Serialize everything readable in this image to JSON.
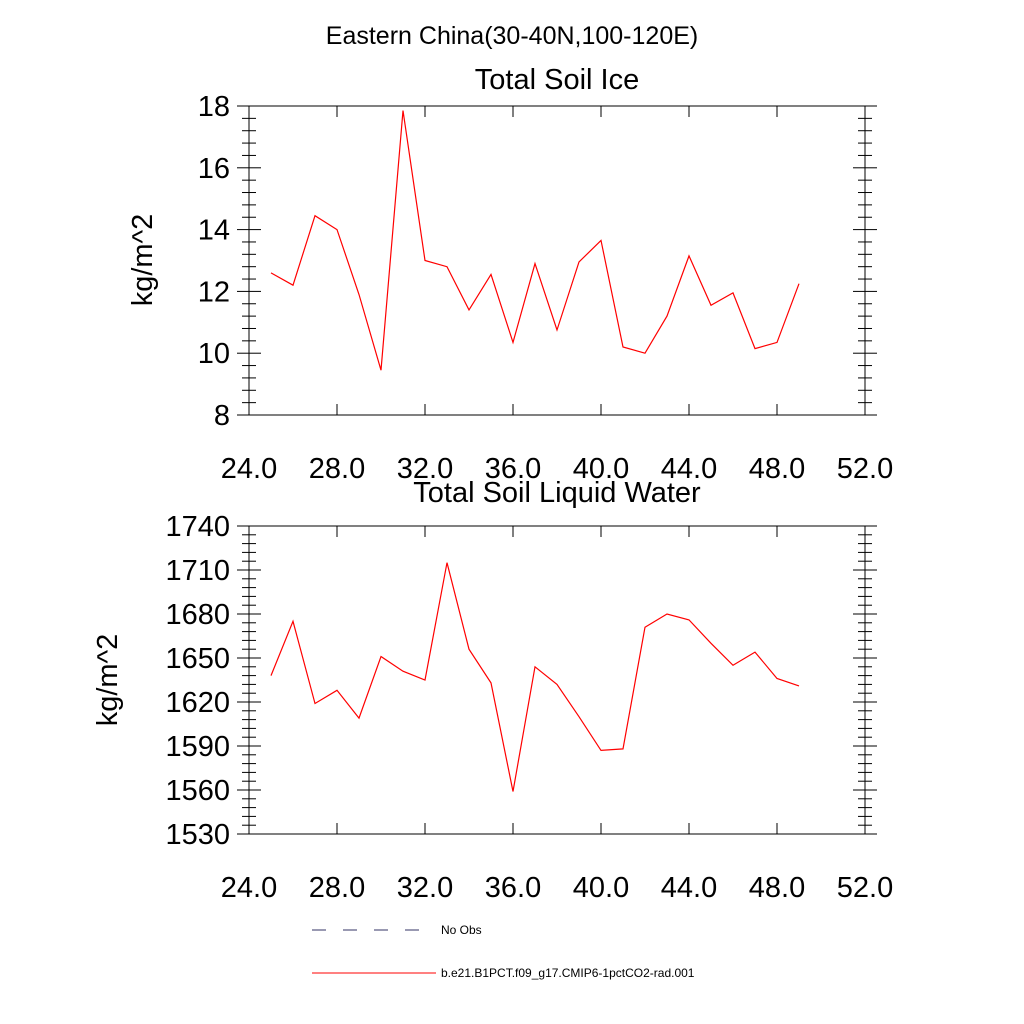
{
  "figure": {
    "title": "Eastern China(30-40N,100-120E)"
  },
  "chart_data": [
    {
      "type": "line",
      "title": "Total Soil Ice",
      "ylabel": "kg/m^2",
      "xlabel": "",
      "xlim": [
        24,
        52
      ],
      "ylim": [
        8,
        18
      ],
      "xticks": [
        "24.0",
        "28.0",
        "32.0",
        "36.0",
        "40.0",
        "44.0",
        "48.0",
        "52.0"
      ],
      "yticks": [
        "8",
        "10",
        "12",
        "14",
        "16",
        "18"
      ],
      "x": [
        25,
        26,
        27,
        28,
        29,
        30,
        31,
        32,
        33,
        34,
        35,
        36,
        37,
        38,
        39,
        40,
        41,
        42,
        43,
        44,
        45,
        46,
        47,
        48,
        49
      ],
      "series": [
        {
          "color": "#ff0000",
          "values": [
            12.6,
            12.2,
            14.45,
            14.0,
            11.9,
            9.45,
            17.85,
            13.0,
            12.8,
            11.4,
            12.55,
            10.35,
            12.9,
            10.75,
            12.95,
            13.65,
            10.2,
            10.0,
            11.2,
            13.15,
            11.55,
            11.95,
            10.15,
            10.35,
            12.25
          ]
        }
      ]
    },
    {
      "type": "line",
      "title": "Total Soil Liquid Water",
      "ylabel": "kg/m^2",
      "xlabel": "",
      "xlim": [
        24,
        52
      ],
      "ylim": [
        1530,
        1740
      ],
      "xticks": [
        "24.0",
        "28.0",
        "32.0",
        "36.0",
        "40.0",
        "44.0",
        "48.0",
        "52.0"
      ],
      "yticks": [
        "1530",
        "1560",
        "1590",
        "1620",
        "1650",
        "1680",
        "1710",
        "1740"
      ],
      "x": [
        25,
        26,
        27,
        28,
        29,
        30,
        31,
        32,
        33,
        34,
        35,
        36,
        37,
        38,
        39,
        40,
        41,
        42,
        43,
        44,
        45,
        46,
        47,
        48,
        49
      ],
      "series": [
        {
          "color": "#ff0000",
          "values": [
            1638,
            1675,
            1619,
            1628,
            1609,
            1651,
            1641,
            1635,
            1715,
            1656,
            1633,
            1559,
            1644,
            1632,
            1610,
            1587,
            1588,
            1671,
            1680,
            1676,
            1660,
            1645,
            1654,
            1636,
            1631
          ]
        }
      ]
    }
  ],
  "legend": {
    "placement": "bottom",
    "items": [
      {
        "label": "No Obs",
        "color": "#333366",
        "style": "dashed"
      },
      {
        "label": "b.e21.B1PCT.f09_g17.CMIP6-1pctCO2-rad.001",
        "color": "#ff0000",
        "style": "solid"
      }
    ]
  }
}
